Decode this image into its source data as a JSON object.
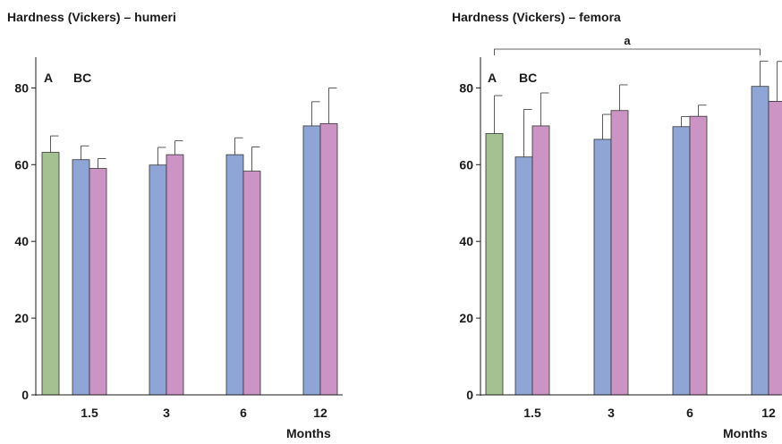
{
  "chart_data": [
    {
      "type": "bar",
      "title": "Hardness (Vickers) – humeri",
      "xlabel": "Months",
      "ylabel": "",
      "ylim": [
        0,
        88
      ],
      "yticks": [
        0,
        20,
        40,
        60,
        80
      ],
      "group_labels": [
        "A",
        "BC"
      ],
      "colors": {
        "A": "#a3c28f",
        "B": "#8ea5d6",
        "C": "#cc94c5"
      },
      "baseline": {
        "name": "A",
        "value": 63.2,
        "error": 4.3
      },
      "categories": [
        "1.5",
        "3",
        "6",
        "12"
      ],
      "series": [
        {
          "name": "B",
          "values": [
            61.3,
            59.9,
            62.6,
            70.1
          ],
          "errors": [
            3.6,
            4.6,
            4.4,
            6.3
          ]
        },
        {
          "name": "C",
          "values": [
            59.0,
            62.6,
            58.3,
            70.7
          ],
          "errors": [
            2.6,
            3.6,
            6.3,
            9.3
          ]
        }
      ],
      "annotations": []
    },
    {
      "type": "bar",
      "title": "Hardness (Vickers) – femora",
      "xlabel": "Months",
      "ylabel": "",
      "ylim": [
        0,
        88
      ],
      "yticks": [
        0,
        20,
        40,
        60,
        80
      ],
      "group_labels": [
        "A",
        "BC"
      ],
      "colors": {
        "A": "#a3c28f",
        "B": "#8ea5d6",
        "C": "#cc94c5"
      },
      "baseline": {
        "name": "A",
        "value": 68.1,
        "error": 9.9
      },
      "categories": [
        "1.5",
        "3",
        "6",
        "12"
      ],
      "series": [
        {
          "name": "B",
          "values": [
            62.0,
            66.6,
            69.9,
            80.4
          ],
          "errors": [
            12.4,
            6.5,
            2.6,
            6.6
          ]
        },
        {
          "name": "C",
          "values": [
            70.1,
            74.1,
            72.6,
            76.5
          ],
          "errors": [
            8.6,
            6.7,
            2.9,
            10.4
          ]
        }
      ],
      "annotations": [
        {
          "label": "a",
          "from": "A",
          "to": "B 12"
        }
      ]
    }
  ]
}
